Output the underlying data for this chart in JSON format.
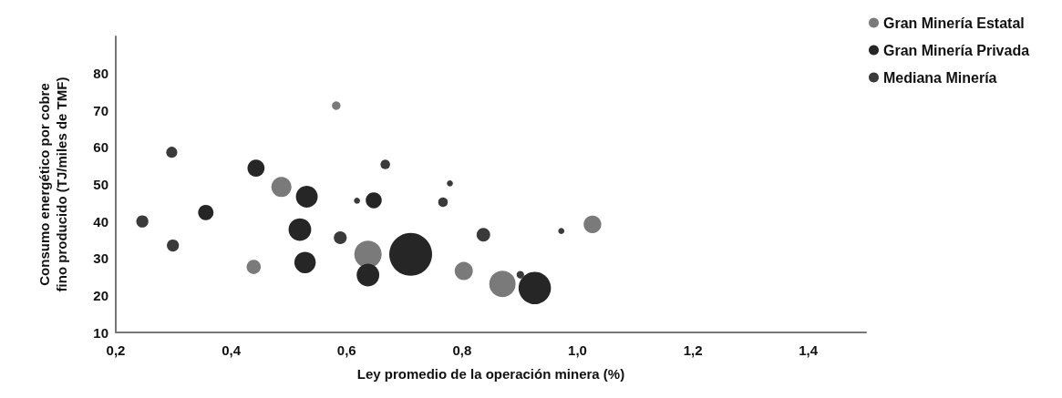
{
  "chart_data": {
    "type": "bubble",
    "xlabel": "Ley promedio de la operación minera (%)",
    "ylabel": "Consumo energético por cobre\nfino producido (TJ/miles de TMF)",
    "xlim": [
      0.2,
      1.5
    ],
    "xticks": [
      {
        "value": 0.2,
        "label": "0,2"
      },
      {
        "value": 0.4,
        "label": "0,4"
      },
      {
        "value": 0.6,
        "label": "0,6"
      },
      {
        "value": 0.8,
        "label": "0,8"
      },
      {
        "value": 1.0,
        "label": "1,0"
      },
      {
        "value": 1.2,
        "label": "1,2"
      },
      {
        "value": 1.4,
        "label": "1,4"
      }
    ],
    "ylim": [
      10,
      90
    ],
    "yticks": [
      10,
      20,
      30,
      40,
      50,
      60,
      70,
      80
    ],
    "grid": false,
    "legend": "top right",
    "series": [
      {
        "name": "Gran Minería Estatal",
        "color": "#7a7a7a",
        "x": [
          0.582,
          0.487,
          0.439,
          0.637,
          0.803,
          0.87,
          1.026
        ],
        "values": [
          71.3,
          49.3,
          27.7,
          31.1,
          26.6,
          23.1,
          39.2
        ],
        "sizes": [
          0.04,
          0.22,
          0.11,
          0.41,
          0.18,
          0.38,
          0.17
        ]
      },
      {
        "name": "Gran Minería Privada",
        "color": "#262626",
        "x": [
          0.443,
          0.531,
          0.647,
          0.356,
          0.519,
          0.528,
          0.637,
          0.711,
          0.926
        ],
        "values": [
          54.4,
          46.7,
          45.7,
          42.4,
          37.8,
          28.9,
          25.5,
          31.1,
          22.0
        ],
        "sizes": [
          0.16,
          0.26,
          0.14,
          0.13,
          0.28,
          0.25,
          0.28,
          1,
          0.57
        ]
      },
      {
        "name": "Mediana Minería",
        "color": "#3a3a3a",
        "x": [
          0.297,
          0.618,
          0.667,
          0.246,
          0.299,
          0.589,
          0.779,
          0.767,
          0.837,
          0.901,
          0.972
        ],
        "values": [
          58.7,
          45.6,
          55.4,
          40.0,
          33.5,
          35.6,
          50.3,
          45.2,
          36.4,
          25.6,
          37.4
        ],
        "sizes": [
          0.066,
          0.02,
          0.05,
          0.08,
          0.08,
          0.09,
          0.02,
          0.05,
          0.1,
          0.03,
          0.02
        ]
      }
    ]
  }
}
